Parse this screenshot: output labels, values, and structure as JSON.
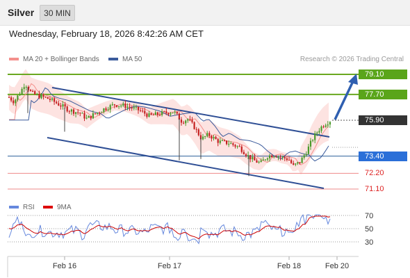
{
  "header": {
    "instrument": "Silver",
    "timeframe": "30 MIN",
    "datetime": "Wednesday, February 18, 2026 8:42:26 AM CET"
  },
  "legend": {
    "ma20_bb": "MA 20 + Bollinger Bands",
    "ma50": "MA 50",
    "credit": "Research © 2026 Trading Central",
    "ma20_color": "#f4908c",
    "ma50_color": "#3b5b9c"
  },
  "rsi_legend": {
    "rsi": "RSI",
    "ma": "9MA",
    "rsi_color": "#6688dd",
    "ma_color": "#dd0000"
  },
  "levels": [
    {
      "value": "79.10",
      "style": "green"
    },
    {
      "value": "77.70",
      "style": "green"
    },
    {
      "value": "75.90",
      "style": "dark"
    },
    {
      "value": "73.40",
      "style": "blue"
    },
    {
      "value": "72.20",
      "style": "red"
    },
    {
      "value": "71.10",
      "style": "red"
    }
  ],
  "rsi_ticks": [
    "70",
    "50",
    "30"
  ],
  "x_labels": [
    "Feb 16",
    "Feb 17",
    "Feb 18",
    "Feb 20"
  ],
  "chart_data": {
    "type": "candlestick",
    "y_levels": [
      79.1,
      77.7,
      75.9,
      73.4,
      72.2,
      71.1
    ],
    "key_levels": {
      "resistance_2": 79.1,
      "resistance_1": 77.7,
      "last": 75.9,
      "pivot": 73.4,
      "support_1": 72.2,
      "support_2": 71.1
    },
    "x_labels": [
      "Feb 16",
      "Feb 17",
      "Feb 18",
      "Feb 20"
    ],
    "series": [
      {
        "name": "MA 20 + Bollinger Bands"
      },
      {
        "name": "MA 50"
      }
    ],
    "rsi": {
      "levels": [
        70,
        50,
        30
      ],
      "series": [
        "RSI",
        "9MA"
      ]
    }
  }
}
